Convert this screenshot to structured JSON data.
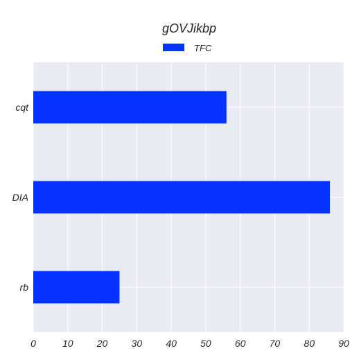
{
  "chart_data": {
    "type": "bar",
    "orientation": "horizontal",
    "title": "gOVJikbp",
    "xlabel": "",
    "ylabel": "",
    "categories": [
      "cqt",
      "DIA",
      "rb"
    ],
    "series": [
      {
        "name": "TFC",
        "values": [
          56,
          86,
          25
        ]
      }
    ],
    "xlim": [
      0,
      90
    ],
    "xticks": [
      0,
      10,
      20,
      30,
      40,
      50,
      60,
      70,
      80,
      90
    ],
    "grid": true,
    "legend_position": "top-center",
    "colors": {
      "series": "#0433ff",
      "plot_background": "#eaeaf2",
      "grid": "#ffffff",
      "text": "#262626"
    }
  }
}
